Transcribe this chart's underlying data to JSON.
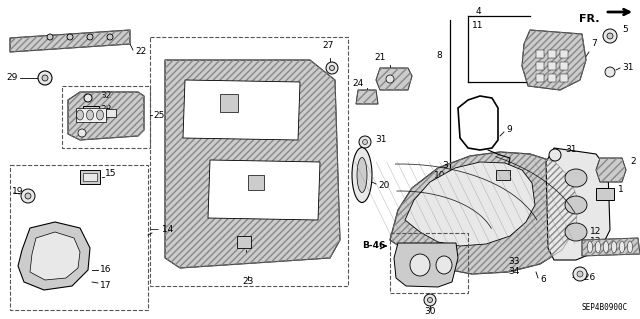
{
  "diagram_code": "SEP4B0900C",
  "bg_color": "#ffffff",
  "fig_width": 6.4,
  "fig_height": 3.19,
  "dpi": 100
}
